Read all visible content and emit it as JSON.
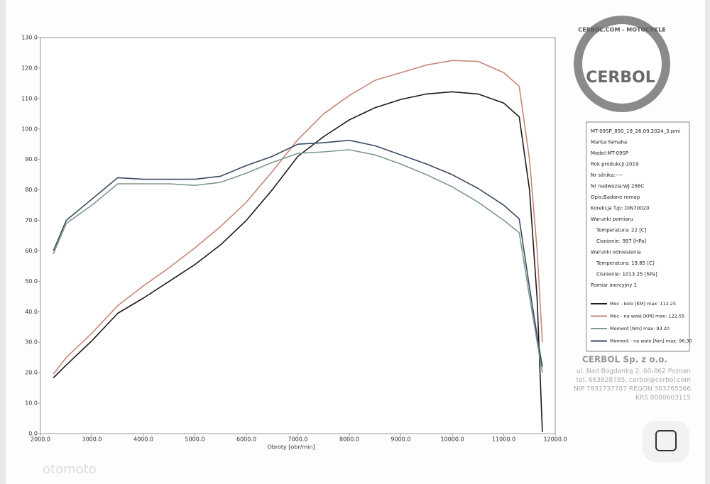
{
  "chart_data": {
    "type": "line",
    "x_label": "Obroty [obr/min]",
    "x": [
      2250,
      2500,
      3000,
      3500,
      4000,
      4500,
      5000,
      5500,
      6000,
      6500,
      7000,
      7500,
      8000,
      8500,
      9000,
      9500,
      10000,
      10500,
      11000,
      11300,
      11500,
      11650,
      11750
    ],
    "series": [
      {
        "name": "Moc - kolo [KM] max: 112.25",
        "color": "#1e1a1c",
        "values": [
          18.3,
          22.5,
          30.5,
          39.5,
          44.5,
          50,
          55.5,
          62,
          70,
          80,
          91,
          97.5,
          103,
          107,
          109.7,
          111.5,
          112.2,
          111.5,
          108.5,
          104,
          80,
          44,
          0.5
        ]
      },
      {
        "name": "Moc - na wale [KM] max: 122.55",
        "color": "#c9857a",
        "values": [
          19.5,
          25,
          33,
          42,
          48.5,
          54.5,
          61,
          68,
          76,
          86,
          96.5,
          105,
          111,
          116,
          118.5,
          121,
          122.5,
          122.2,
          118.5,
          114,
          90,
          60,
          30
        ]
      },
      {
        "name": "Moment [Nm] max: 93.20",
        "color": "#7d9a8c",
        "values": [
          59,
          69,
          75,
          82,
          82,
          82,
          81.5,
          82.5,
          85.5,
          89,
          92,
          92.5,
          93.2,
          91.5,
          88.5,
          85,
          81,
          76,
          70,
          66,
          45,
          30,
          20
        ]
      },
      {
        "name": "Moment - na wale [Nm] max: 96.30",
        "color": "#3b4a62",
        "values": [
          60,
          70,
          77,
          84,
          83.5,
          83.5,
          83.5,
          84.5,
          88,
          91,
          95,
          95.5,
          96.3,
          94.5,
          91.5,
          88.5,
          85,
          80.5,
          75,
          70.5,
          48,
          32,
          22
        ]
      }
    ],
    "xlim": [
      2000,
      12000
    ],
    "xticks": [
      {
        "value": 2000,
        "label": "2000.0"
      },
      {
        "value": 3000,
        "label": "3000.0"
      },
      {
        "value": 4000,
        "label": "4000.0"
      },
      {
        "value": 5000,
        "label": "5000.0"
      },
      {
        "value": 6000,
        "label": "6000.0"
      },
      {
        "value": 7000,
        "label": "7000.0"
      },
      {
        "value": 8000,
        "label": "8000.0"
      },
      {
        "value": 9000,
        "label": "9000.0"
      },
      {
        "value": 10000,
        "label": "10000.0"
      },
      {
        "value": 11000,
        "label": "11000.0"
      },
      {
        "value": 12000,
        "label": "12000.0"
      }
    ],
    "ylim": [
      0,
      130
    ],
    "yticks": [
      {
        "value": 0,
        "label": "0.0"
      },
      {
        "value": 10,
        "label": "10.0"
      },
      {
        "value": 20,
        "label": "20.0"
      },
      {
        "value": 30,
        "label": "30.0"
      },
      {
        "value": 40,
        "label": "40.0"
      },
      {
        "value": 50,
        "label": "50.0"
      },
      {
        "value": 60,
        "label": "60.0"
      },
      {
        "value": 70,
        "label": "70.0"
      },
      {
        "value": 80,
        "label": "80.0"
      },
      {
        "value": 90,
        "label": "90.0"
      },
      {
        "value": 100,
        "label": "100.0"
      },
      {
        "value": 110,
        "label": "110.0"
      },
      {
        "value": 120,
        "label": "120.0"
      },
      {
        "value": 130,
        "label": "130.0"
      }
    ],
    "grid": false
  },
  "info_panel": {
    "lines": [
      "MT-09SP_850_19_26.09.2024_3.pmi",
      "Marka:Yamaha",
      "Model:MT-09SP",
      "Rok produkcji:2019",
      "Nr silnika:----",
      "Nr nadwozia:WJ 256C",
      "Opis:Badane remap",
      "Korekcja T/p: DIN70020",
      "Warunki pomiaru",
      "Temperatura: 22 [C]",
      "Cisnienie: 997 [hPa]",
      "Warunki odniesienia",
      "Temperatura: 19.85 [C]",
      "Cisnienie: 1013.25 [hPa]",
      "Pomiar inercyjny 1"
    ]
  },
  "logo": {
    "ring": "CERBOL.COM - MOTOCYKLE",
    "name": "CERBOL"
  },
  "company": {
    "name": "CERBOL Sp. z o.o.",
    "lines": [
      "ul. Nad Bogdanką 2, 60-862 Poznan",
      "tel. 663828785, cerbol@cerbol.com",
      "NIP 7831737787  REGON 363765566",
      "KRS 0000603115"
    ]
  },
  "watermark": "otomoto"
}
